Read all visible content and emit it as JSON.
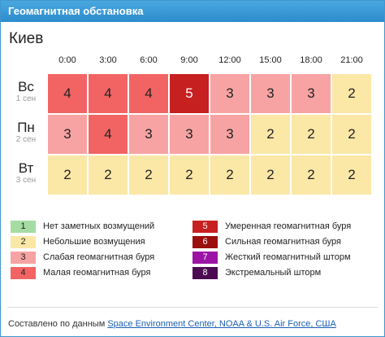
{
  "header": {
    "title": "Геомагнитная обстановка"
  },
  "city": "Киев",
  "times": [
    "0:00",
    "3:00",
    "6:00",
    "9:00",
    "12:00",
    "15:00",
    "18:00",
    "21:00"
  ],
  "days": [
    {
      "name": "Вс",
      "date": "1 сен",
      "values": [
        4,
        4,
        4,
        5,
        3,
        3,
        3,
        2
      ]
    },
    {
      "name": "Пн",
      "date": "2 сен",
      "values": [
        3,
        4,
        3,
        3,
        3,
        2,
        2,
        2
      ]
    },
    {
      "name": "Вт",
      "date": "3 сен",
      "values": [
        2,
        2,
        2,
        2,
        2,
        2,
        2,
        2
      ]
    }
  ],
  "level_colors": {
    "1": {
      "bg": "#a4dca4",
      "fg": "#222222"
    },
    "2": {
      "bg": "#fbe7a6",
      "fg": "#222222"
    },
    "3": {
      "bg": "#f8a3a3",
      "fg": "#222222"
    },
    "4": {
      "bg": "#f26464",
      "fg": "#222222"
    },
    "5": {
      "bg": "#c62020",
      "fg": "#ffffff"
    },
    "6": {
      "bg": "#9b0f0f",
      "fg": "#ffffff"
    },
    "7": {
      "bg": "#9c14a6",
      "fg": "#ffffff"
    },
    "8": {
      "bg": "#4c0a52",
      "fg": "#ffffff"
    }
  },
  "legend": [
    {
      "level": "1",
      "text": "Нет заметных возмущений"
    },
    {
      "level": "2",
      "text": "Небольшие возмущения"
    },
    {
      "level": "3",
      "text": "Слабая геомагнитная буря"
    },
    {
      "level": "4",
      "text": "Малая геомагнитная буря"
    },
    {
      "level": "5",
      "text": "Умеренная геомагнитная буря"
    },
    {
      "level": "6",
      "text": "Сильная геомагнитная буря"
    },
    {
      "level": "7",
      "text": "Жесткий геомагнитный шторм"
    },
    {
      "level": "8",
      "text": "Экстремальный шторм"
    }
  ],
  "footer": {
    "prefix": "Составлено по данным",
    "link_text": "Space Environment Center, NOAA & U.S. Air Force, США"
  }
}
